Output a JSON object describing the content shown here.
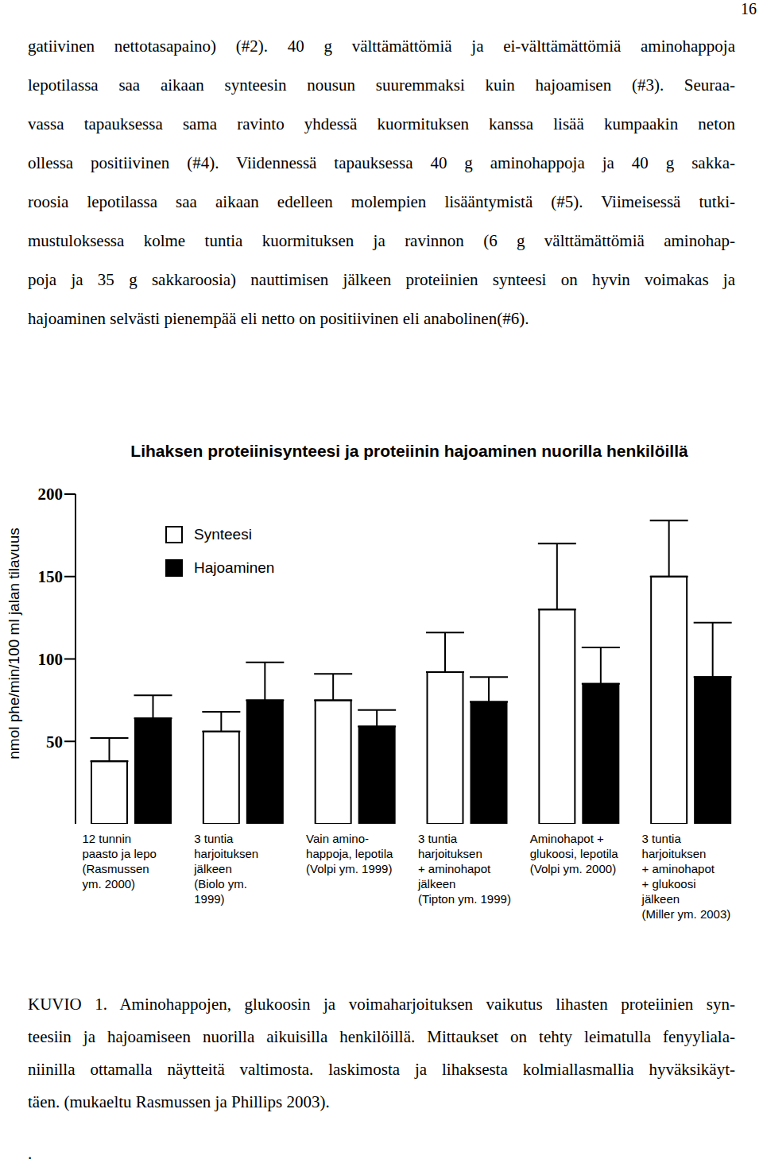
{
  "page_number": "16",
  "paragraph_lines": [
    "gatiivinen nettotasapaino) (#2). 40 g välttämättömiä ja ei-välttämättömiä aminohappoja",
    "lepotilassa saa aikaan synteesin nousun suuremmaksi kuin hajoamisen (#3). Seuraa-",
    "vassa tapauksessa sama ravinto yhdessä kuormituksen kanssa lisää kumpaakin neton",
    "ollessa positiivinen (#4). Viidennessä tapauksessa 40 g aminohappoja ja 40 g sakka-",
    "roosia lepotilassa saa aikaan edelleen molempien lisääntymistä (#5). Viimeisessä tutki-",
    "mustuloksessa kolme tuntia kuormituksen ja ravinnon (6 g välttämättömiä aminohap-",
    "poja ja 35 g sakkaroosia) nauttimisen jälkeen proteiinien synteesi on hyvin voimakas ja",
    "hajoaminen selvästi pienempää eli netto on positiivinen eli anabolinen(#6)."
  ],
  "chart_data": {
    "type": "bar",
    "title": "Lihaksen proteiinisynteesi ja proteiinin hajoaminen nuorilla henkilöillä",
    "y_label": "nmol phe/min/100 ml jalan tilavuus",
    "categories": [
      "12 tunnin\npaasto ja lepo\n(Rasmussen\nym. 2000)",
      "3 tuntia\nharjoituksen\njälkeen\n(Biolo ym.\n1999)",
      "Vain amino-\nhappoja, lepotila\n(Volpi ym. 1999)",
      "3 tuntia\nharjoituksen\n+ aminohapot\njälkeen\n(Tipton ym. 1999)",
      "Aminohapot +\nglukoosi, lepotila\n(Volpi ym. 2000)",
      "3 tuntia\nharjoituksen\n+ aminohapot\n+ glukoosi\njälkeen\n(Miller ym. 2003)"
    ],
    "series": [
      {
        "name": "Synteesi",
        "color": "#ffffff",
        "values": [
          38,
          56,
          75,
          92,
          130,
          150
        ],
        "errors": [
          14,
          12,
          16,
          24,
          40,
          34
        ]
      },
      {
        "name": "Hajoaminen",
        "color": "#000000",
        "values": [
          64,
          75,
          59,
          74,
          85,
          89
        ],
        "errors": [
          14,
          23,
          10,
          15,
          22,
          33
        ]
      }
    ],
    "ylim": [
      0,
      200
    ],
    "yticks": [
      50,
      100,
      150,
      200
    ],
    "legend": "upper left"
  },
  "caption_lines": [
    "KUVIO 1. Aminohappojen, glukoosin ja voimaharjoituksen vaikutus lihasten proteiinien syn-",
    "teesiin ja hajoamiseen nuorilla aikuisilla henkilöillä. Mittaukset on tehty leimatulla fenyyliala-",
    "niinilla ottamalla näytteitä valtimosta. laskimosta ja lihaksesta kolmiallasmallia hyväksikäyt-",
    "täen. (mukaeltu Rasmussen ja Phillips 2003)."
  ],
  "footer": "."
}
